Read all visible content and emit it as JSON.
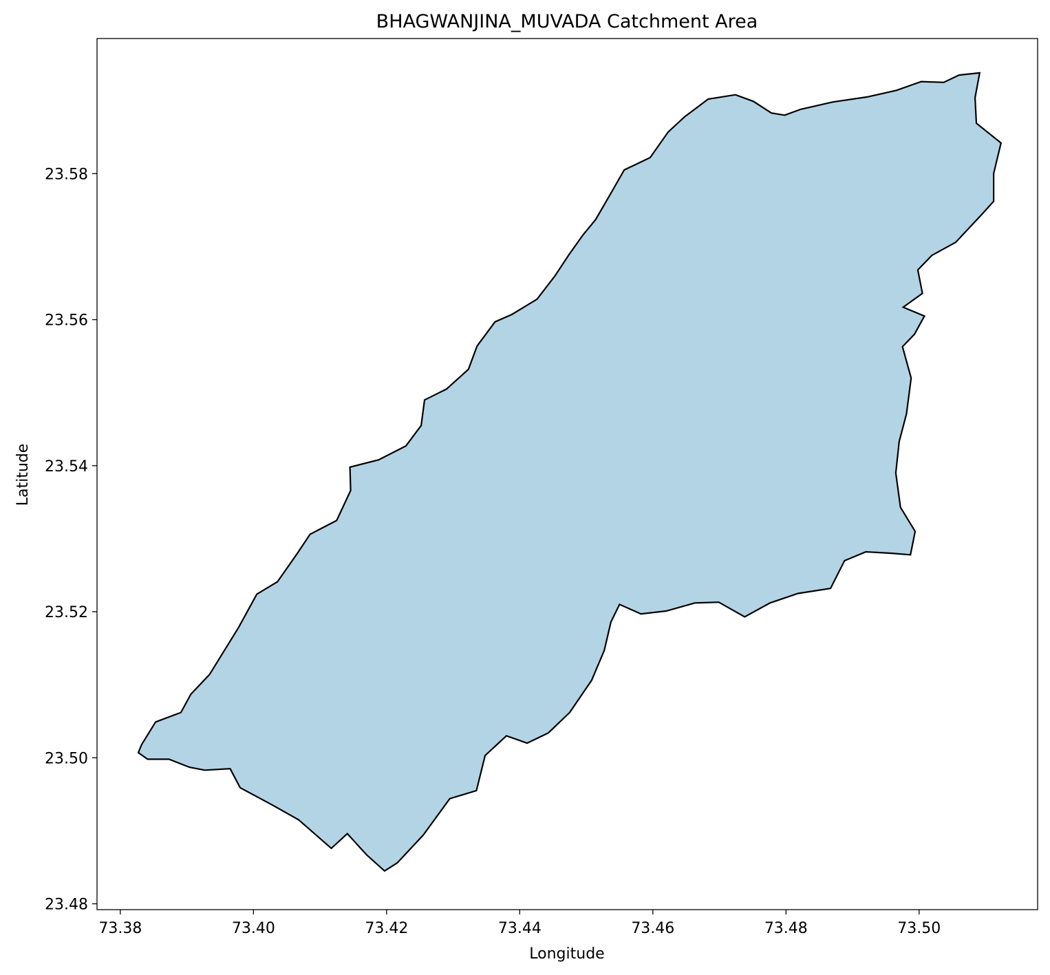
{
  "chart_data": {
    "type": "map",
    "title": "BHAGWANJINA_MUVADA Catchment Area",
    "xlabel": "Longitude",
    "ylabel": "Latitude",
    "xlim": [
      73.3765,
      73.5178
    ],
    "ylim": [
      23.4792,
      23.5985
    ],
    "x_ticks": [
      73.38,
      73.4,
      73.42,
      73.44,
      73.46,
      73.48,
      73.5
    ],
    "x_tick_labels": [
      "73.38",
      "73.40",
      "73.42",
      "73.44",
      "73.46",
      "73.48",
      "73.50"
    ],
    "y_ticks": [
      23.48,
      23.5,
      23.52,
      23.54,
      23.56,
      23.58
    ],
    "y_tick_labels": [
      "23.48",
      "23.50",
      "23.52",
      "23.54",
      "23.56",
      "23.58"
    ],
    "grid": false,
    "fill_color": "#b3d4e5",
    "edge_color": "#000000",
    "boundary": [
      [
        73.5091,
        23.5938
      ],
      [
        73.5084,
        23.5904
      ],
      [
        73.5086,
        23.5869
      ],
      [
        73.5123,
        23.5842
      ],
      [
        73.5112,
        23.58
      ],
      [
        73.5112,
        23.5762
      ],
      [
        73.5095,
        23.5745
      ],
      [
        73.5055,
        23.5706
      ],
      [
        73.5019,
        23.5688
      ],
      [
        73.4998,
        23.5668
      ],
      [
        73.5005,
        23.5636
      ],
      [
        73.4976,
        23.5617
      ],
      [
        73.5008,
        23.5605
      ],
      [
        73.4993,
        23.558
      ],
      [
        73.4975,
        23.5563
      ],
      [
        73.4988,
        23.552
      ],
      [
        73.4981,
        23.5471
      ],
      [
        73.497,
        23.5433
      ],
      [
        73.4965,
        23.539
      ],
      [
        73.4972,
        23.5343
      ],
      [
        73.4994,
        23.531
      ],
      [
        73.4987,
        23.5278
      ],
      [
        73.4959,
        23.528
      ],
      [
        73.492,
        23.5282
      ],
      [
        73.4888,
        23.527
      ],
      [
        73.4867,
        23.5232
      ],
      [
        73.4818,
        23.5225
      ],
      [
        73.4776,
        23.5212
      ],
      [
        73.4738,
        23.5193
      ],
      [
        73.4699,
        23.5213
      ],
      [
        73.4663,
        23.5212
      ],
      [
        73.462,
        23.5201
      ],
      [
        73.4582,
        23.5197
      ],
      [
        73.455,
        23.521
      ],
      [
        73.4537,
        23.5186
      ],
      [
        73.4527,
        23.5147
      ],
      [
        73.4508,
        23.5106
      ],
      [
        73.4475,
        23.5062
      ],
      [
        73.4443,
        23.5034
      ],
      [
        73.4411,
        23.502
      ],
      [
        73.438,
        23.503
      ],
      [
        73.4348,
        23.5003
      ],
      [
        73.4335,
        23.4955
      ],
      [
        73.4295,
        23.4944
      ],
      [
        73.4255,
        23.4894
      ],
      [
        73.4216,
        23.4856
      ],
      [
        73.4197,
        23.4845
      ],
      [
        73.417,
        23.4867
      ],
      [
        73.4141,
        23.4896
      ],
      [
        73.4117,
        23.4876
      ],
      [
        73.4068,
        23.4915
      ],
      [
        73.4031,
        23.4934
      ],
      [
        73.398,
        23.4959
      ],
      [
        73.3965,
        23.4985
      ],
      [
        73.3927,
        23.4983
      ],
      [
        73.3904,
        23.4987
      ],
      [
        73.3873,
        23.4998
      ],
      [
        73.3841,
        23.4998
      ],
      [
        73.3827,
        23.5007
      ],
      [
        73.3832,
        23.5018
      ],
      [
        73.3853,
        23.5049
      ],
      [
        73.3891,
        23.5062
      ],
      [
        73.3906,
        23.5087
      ],
      [
        73.3934,
        23.5114
      ],
      [
        73.3953,
        23.5142
      ],
      [
        73.3978,
        23.5179
      ],
      [
        73.4005,
        23.5224
      ],
      [
        73.4036,
        23.5241
      ],
      [
        73.4066,
        23.528
      ],
      [
        73.4085,
        23.5306
      ],
      [
        73.4125,
        23.5325
      ],
      [
        73.4146,
        23.5366
      ],
      [
        73.4145,
        23.5398
      ],
      [
        73.4188,
        23.5408
      ],
      [
        73.4229,
        23.5427
      ],
      [
        73.4252,
        23.5455
      ],
      [
        73.4257,
        23.549
      ],
      [
        73.429,
        23.5505
      ],
      [
        73.4323,
        23.5532
      ],
      [
        73.4336,
        23.5564
      ],
      [
        73.4363,
        23.5597
      ],
      [
        73.4388,
        23.5607
      ],
      [
        73.4426,
        23.5628
      ],
      [
        73.4453,
        23.566
      ],
      [
        73.4474,
        23.5689
      ],
      [
        73.4495,
        23.5716
      ],
      [
        73.4514,
        23.5737
      ],
      [
        73.4535,
        23.577
      ],
      [
        73.4557,
        23.5805
      ],
      [
        73.4596,
        23.5822
      ],
      [
        73.4623,
        23.5857
      ],
      [
        73.4648,
        23.5878
      ],
      [
        73.4683,
        23.5902
      ],
      [
        73.4724,
        23.5908
      ],
      [
        73.4751,
        23.5899
      ],
      [
        73.4778,
        23.5883
      ],
      [
        73.4798,
        23.588
      ],
      [
        73.4822,
        23.5888
      ],
      [
        73.487,
        23.5898
      ],
      [
        73.4922,
        23.5905
      ],
      [
        73.4966,
        23.5914
      ],
      [
        73.5003,
        23.5926
      ],
      [
        73.5037,
        23.5925
      ],
      [
        73.506,
        23.5935
      ],
      [
        73.5091,
        23.5938
      ]
    ]
  }
}
